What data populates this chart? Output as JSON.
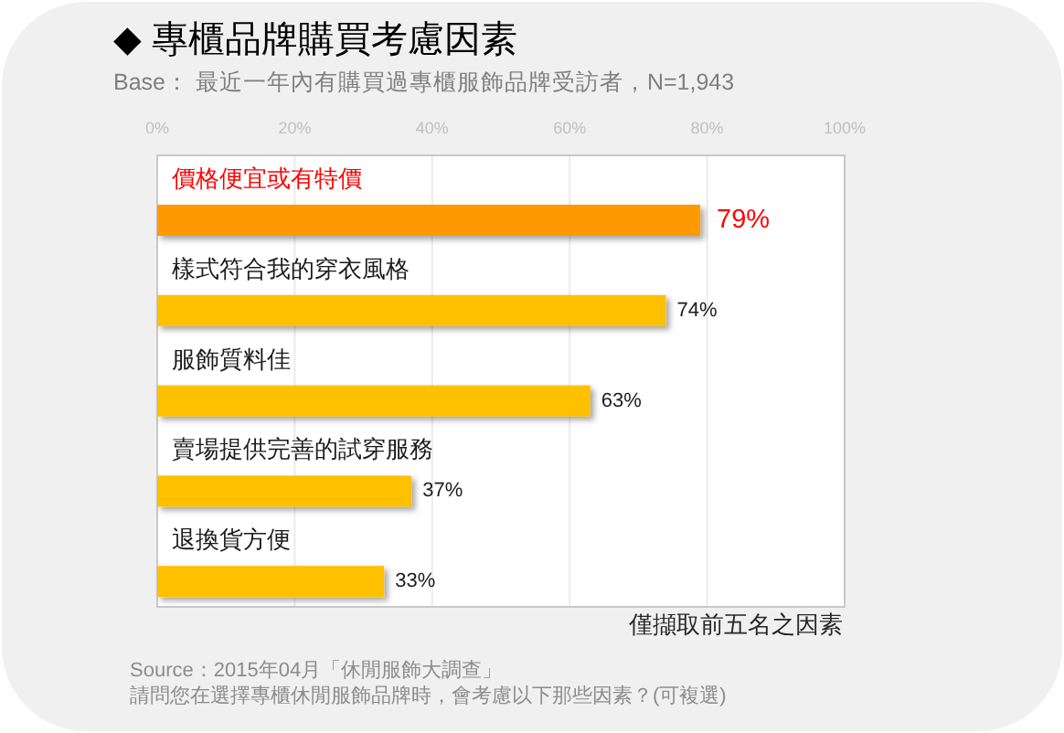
{
  "chart_data": {
    "type": "bar",
    "orientation": "horizontal",
    "title": "◆ 專櫃品牌購買考慮因素",
    "subtitle": "Base： 最近一年內有購買過專櫃服飾品牌受訪者，N=1,943",
    "categories": [
      "價格便宜或有特價",
      "樣式符合我的穿衣風格",
      "服飾質料佳",
      "賣場提供完善的試穿服務",
      "退換貨方便"
    ],
    "values": [
      79,
      74,
      63,
      37,
      33
    ],
    "colors": [
      "#ff9900",
      "#ffc000",
      "#ffc000",
      "#ffc000",
      "#ffc000"
    ],
    "value_labels": [
      "79%",
      "74%",
      "63%",
      "37%",
      "33%"
    ],
    "xlim": [
      0,
      100
    ],
    "xticks": [
      {
        "value": 0,
        "label": "0%"
      },
      {
        "value": 20,
        "label": "20%"
      },
      {
        "value": 40,
        "label": "40%"
      },
      {
        "value": 60,
        "label": "60%"
      },
      {
        "value": 80,
        "label": "80%"
      },
      {
        "value": 100,
        "label": "100%"
      }
    ],
    "grid": "x",
    "annotations": [
      "僅擷取前五名之因素",
      "Source：2015年04月「休閒服飾大調查」",
      "請問您在選擇專櫃休閒服飾品牌時，會考慮以下那些因素？(可複選)"
    ]
  }
}
